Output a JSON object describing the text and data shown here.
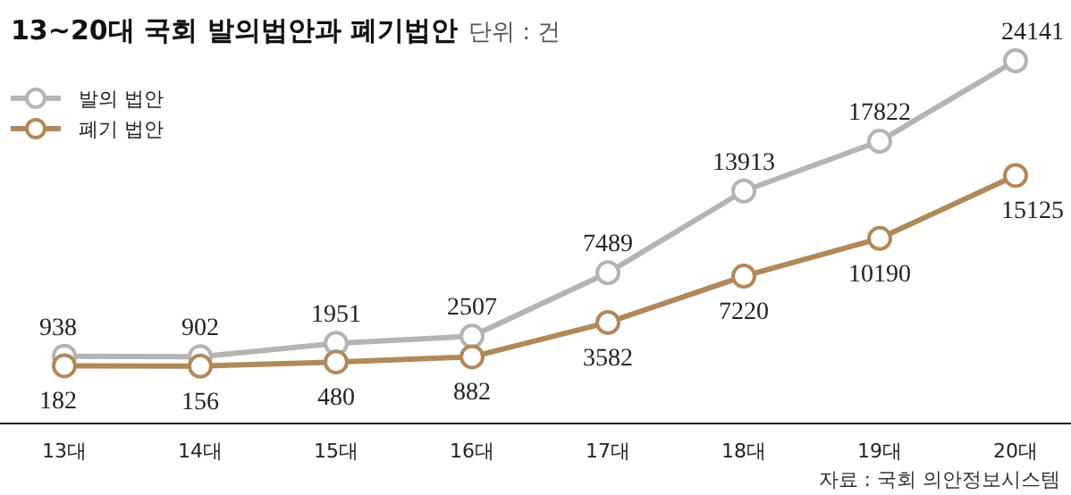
{
  "chart_data": {
    "type": "line",
    "title": "13~20대 국회 발의법안과 폐기법안",
    "subtitle": "단위 : 건",
    "categories": [
      "13대",
      "14대",
      "15대",
      "16대",
      "17대",
      "18대",
      "19대",
      "20대"
    ],
    "series": [
      {
        "name": "발의 법안",
        "color": "#b4b4b4",
        "values": [
          938,
          902,
          1951,
          2507,
          7489,
          13913,
          17822,
          24141
        ]
      },
      {
        "name": "폐기 법안",
        "color": "#b0895a",
        "values": [
          182,
          156,
          480,
          882,
          3582,
          7220,
          10190,
          15125
        ]
      }
    ],
    "data_labels": true,
    "marker": "circle",
    "legend": "top left",
    "annotations": [
      "자료 : 국회 의안정보시스템"
    ]
  }
}
